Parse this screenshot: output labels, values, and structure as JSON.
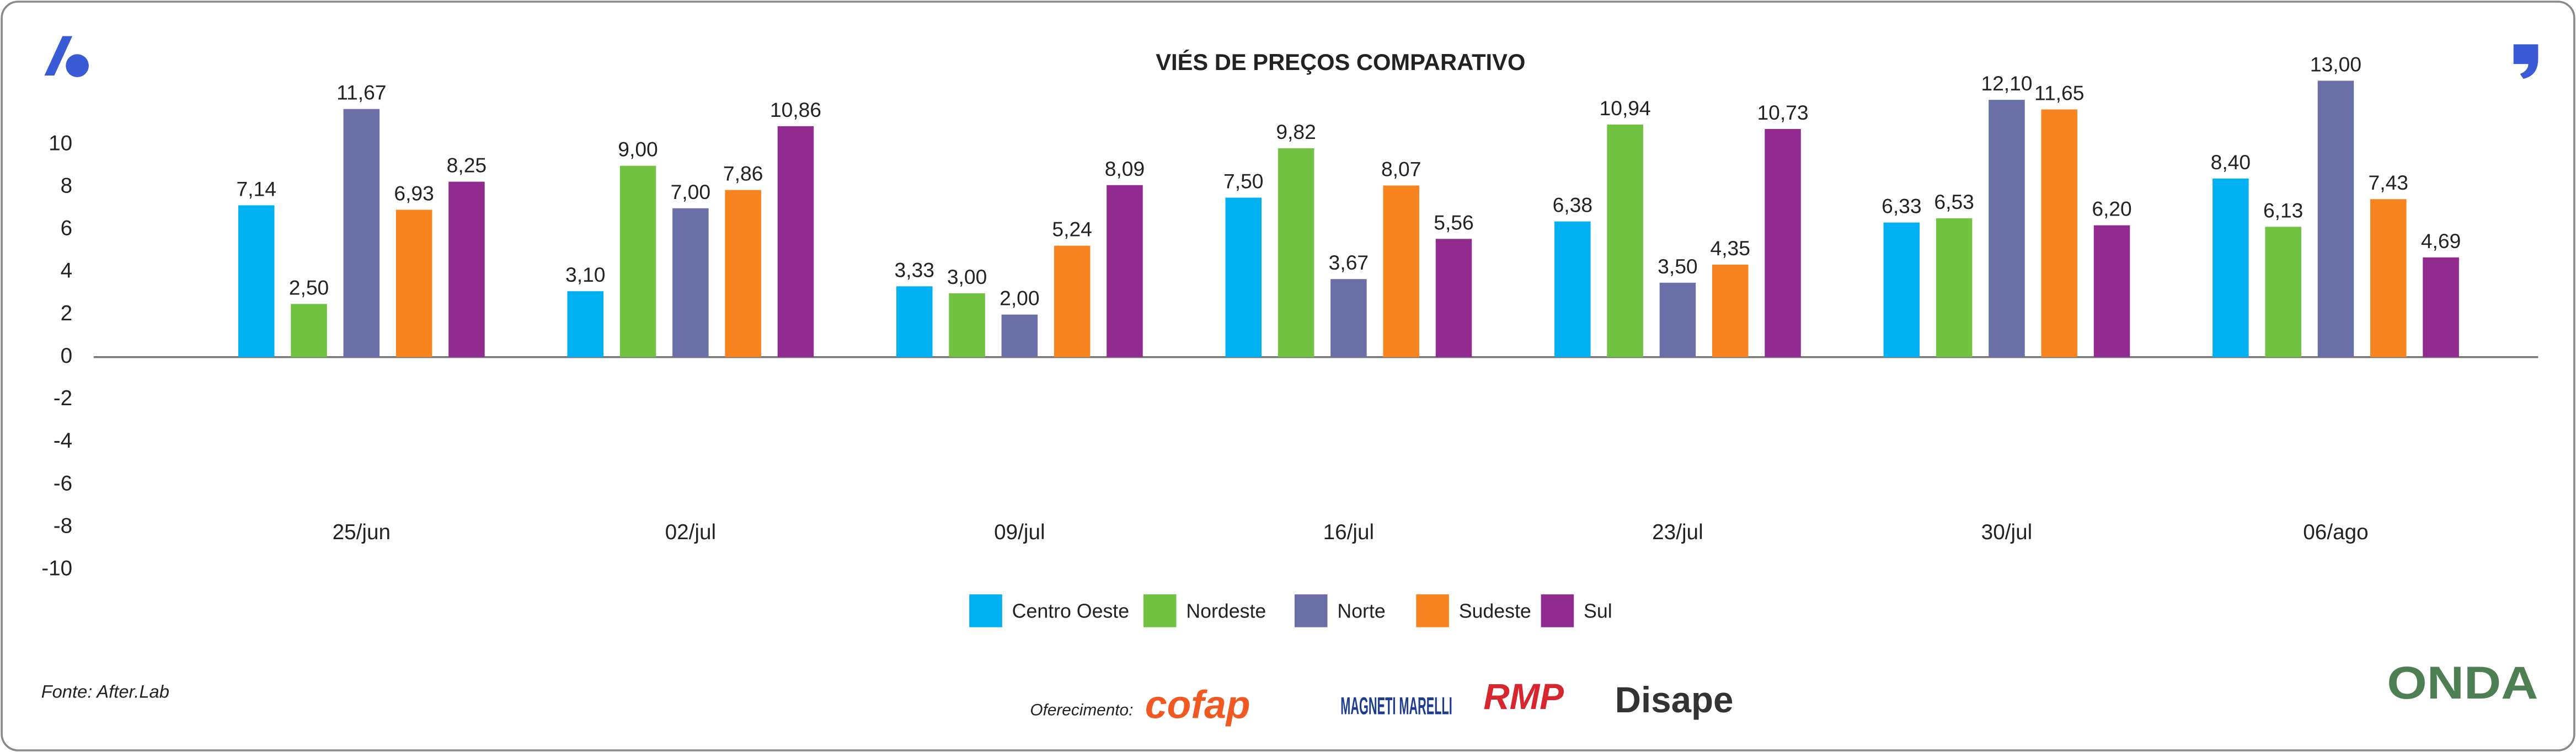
{
  "chart_data": {
    "type": "bar",
    "title": "VIÉS DE PREÇOS COMPARATIVO",
    "categories": [
      "25/jun",
      "02/jul",
      "09/jul",
      "16/jul",
      "23/jul",
      "30/jul",
      "06/ago"
    ],
    "series": [
      {
        "name": "Centro Oeste",
        "color": "#00b0f0",
        "values": [
          7.14,
          3.1,
          3.33,
          7.5,
          6.38,
          6.33,
          8.4
        ],
        "value_labels": [
          "7,14",
          "3,10",
          "3,33",
          "7,50",
          "6,38",
          "6,33",
          "8,40"
        ]
      },
      {
        "name": "Nordeste",
        "color": "#70c240",
        "values": [
          2.5,
          9.0,
          3.0,
          9.82,
          10.94,
          6.53,
          6.13
        ],
        "value_labels": [
          "2,50",
          "9,00",
          "3,00",
          "9,82",
          "10,94",
          "6,53",
          "6,13"
        ]
      },
      {
        "name": "Norte",
        "color": "#6a6fa8",
        "values": [
          11.67,
          7.0,
          2.0,
          3.67,
          3.5,
          12.1,
          13.0
        ],
        "value_labels": [
          "11,67",
          "7,00",
          "2,00",
          "3,67",
          "3,50",
          "12,10",
          "13,00"
        ]
      },
      {
        "name": "Sudeste",
        "color": "#f7841f",
        "values": [
          6.93,
          7.86,
          5.24,
          8.07,
          4.35,
          11.65,
          7.43
        ],
        "value_labels": [
          "6,93",
          "7,86",
          "5,24",
          "8,07",
          "4,35",
          "11,65",
          "7,43"
        ]
      },
      {
        "name": "Sul",
        "color": "#922b8f",
        "values": [
          8.25,
          10.86,
          8.09,
          5.56,
          10.73,
          6.2,
          4.69
        ],
        "value_labels": [
          "8,25",
          "10,86",
          "8,09",
          "5,56",
          "10,73",
          "6,20",
          "4,69"
        ]
      }
    ],
    "ylim": [
      -10,
      10
    ],
    "yticks": [
      10,
      8,
      6,
      4,
      2,
      0,
      -2,
      -4,
      -6,
      -8,
      -10
    ],
    "grid": false,
    "legend": "bottom"
  },
  "source": "Fonte: After.Lab",
  "sponsor_label": "Oferecimento:",
  "sponsors": [
    "cofap",
    "MAGNETI MARELLI",
    "RMP",
    "Disape"
  ],
  "brand": "ONDA"
}
